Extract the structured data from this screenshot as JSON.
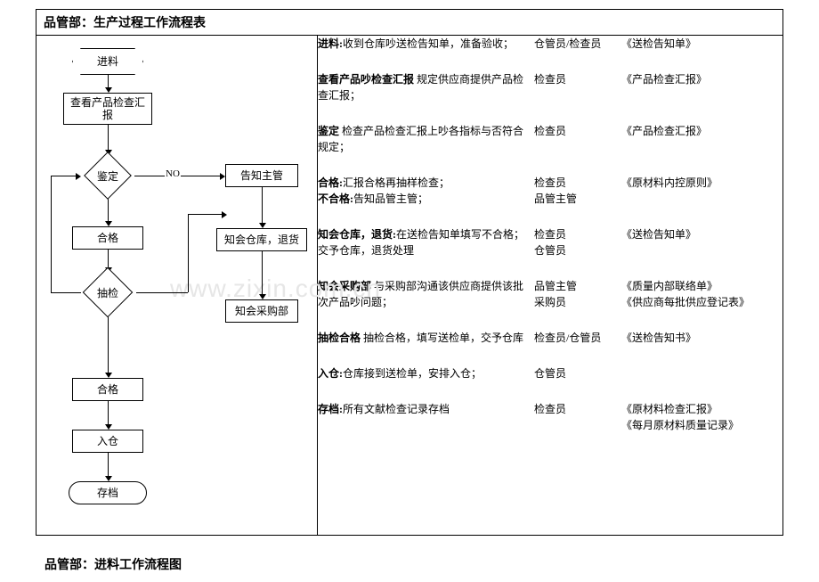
{
  "title": "品管部：生产过程工作流程表",
  "footer_title": "品管部：进料工作流程图",
  "watermark": "www.zixin.com.cn",
  "flow": {
    "nodes": {
      "n1": {
        "label": "进料"
      },
      "n2": {
        "label": "查看产品检查汇报"
      },
      "n3": {
        "label": "鉴定"
      },
      "no": {
        "label": "NO"
      },
      "n4a": {
        "label": "告知主管"
      },
      "n5": {
        "label": "合格"
      },
      "n5a": {
        "label": "知会仓库，退货"
      },
      "n6": {
        "label": "抽检"
      },
      "n6a": {
        "label": "知会采购部"
      },
      "n7": {
        "label": "合格"
      },
      "n8": {
        "label": "入仓"
      },
      "n9": {
        "label": "存档"
      }
    }
  },
  "rows": [
    {
      "step_bold": "进料:",
      "step_rest": "收到仓库吵送检告知单，准备验收；",
      "role": "仓管员/检查员",
      "doc": "《送检告知单》"
    },
    {
      "step_bold": "查看产品吵检查汇报",
      "step_rest": " 规定供应商提供产品检查汇报；",
      "role": "检查员",
      "doc": "《产品检查汇报》"
    },
    {
      "step_bold": "鉴定",
      "step_rest": " 检查产品检查汇报上吵各指标与否符合规定；",
      "role": "检查员",
      "doc": "《产品检查汇报》"
    },
    {
      "step_bold": "合格:",
      "step_rest": "汇报合格再抽样检查；",
      "step2_bold": "不合格:",
      "step2_rest": "告知品管主管；",
      "role": "检查员\n品管主管",
      "doc": "《原材料内控原则》"
    },
    {
      "step_bold": "知会仓库，退货:",
      "step_rest": "在送检告知单填写不合格；交予仓库，退货处理",
      "role": "检查员\n仓管员",
      "doc": "《送检告知单》"
    },
    {
      "step_bold": "知会采购部",
      "step_rest": " 与采购部沟通该供应商提供该批次产品吵问题；",
      "role": "品管主管\n采购员",
      "doc": "《质量内部联络单》\n《供应商每批供应登记表》"
    },
    {
      "step_bold": "抽检合格",
      "step_rest": " 抽检合格，填写送检单，交予仓库",
      "role": "检查员/仓管员",
      "doc": "《送检告知书》"
    },
    {
      "step_bold": "入仓:",
      "step_rest": "仓库接到送检单，安排入仓；",
      "role": "仓管员",
      "doc": ""
    },
    {
      "step_bold": "存档:",
      "step_rest": "所有文献检查记录存档",
      "role": "检查员",
      "doc": "《原材料检查汇报》\n《每月原材料质量记录》"
    }
  ]
}
